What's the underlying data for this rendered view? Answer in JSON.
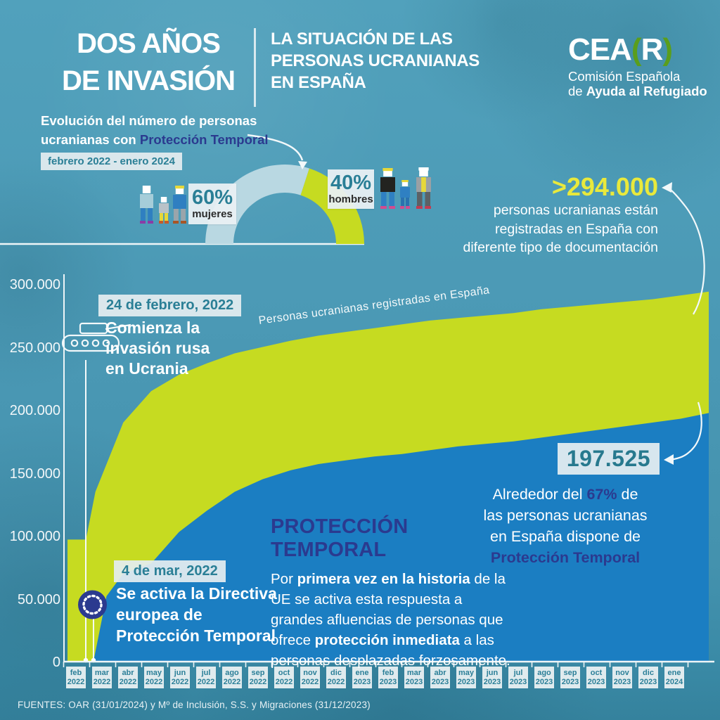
{
  "page": {
    "footer": "FUENTES: OAR (31/01/2024) y Mº de  Inclusión, S.S. y Migraciones (31/12/2023)"
  },
  "header": {
    "title_line1": "DOS AÑOS",
    "title_line2": "DE INVASIÓN",
    "subtitle_line1": "LA SITUACIÓN DE LAS",
    "subtitle_line2": "PERSONAS UCRANIANAS",
    "subtitle_line3": "EN ESPAÑA",
    "logo": {
      "part1": "CEA",
      "paren_open": "(",
      "part2": "R",
      "paren_close": ")",
      "org_line1": "Comisión Española",
      "org_line2_prefix": "de ",
      "org_line2_bold": "Ayuda al Refugiado",
      "accent_color": "#5a9e1c"
    }
  },
  "intro": {
    "line1": "Evolución del número de personas",
    "line2_prefix": "ucranianas con ",
    "line2_highlight": "Protección Temporal",
    "period": "febrero 2022 - enero 2024"
  },
  "gender_chart": {
    "type": "donut-half",
    "women_pct": "60%",
    "women_label": "mujeres",
    "women_color": "#b9d8e2",
    "men_pct": "40%",
    "men_label": "hombres",
    "men_color": "#c6db21"
  },
  "registered_callout": {
    "value": ">294.000",
    "line1": "personas ucranianas están",
    "line2": "registradas en España con",
    "line3": "diferente tipo de documentación",
    "value_color": "#e9e93c"
  },
  "pt_callout": {
    "value": "197.525",
    "line1_prefix": "Alrededor del ",
    "line1_bold": "67%",
    "line1_suffix": " de",
    "line2": "las personas ucranianas",
    "line3": "en España dispone de",
    "line4_bold": "Protección Temporal"
  },
  "protection_block": {
    "title": "PROTECCIÓN TEMPORAL",
    "p1": "Por ",
    "b1": "primera vez en la historia",
    "p2": " de la UE se activa esta respuesta  a grandes afluencias de personas que ofrece  ",
    "b2": "protección inmediata",
    "p3": " a las personas desplazadas forzosamente."
  },
  "annotations": {
    "invasion": {
      "date": "24 de febrero, 2022",
      "line1": "Comienza la",
      "line2": "invasión rusa",
      "line3": "en Ucrania"
    },
    "directive": {
      "date": "4 de mar, 2022",
      "line1": "Se activa la Directiva",
      "line2": "europea  de",
      "line3": "Protección Temporal"
    }
  },
  "chart_data": {
    "type": "area",
    "title": "Evolución del número de personas ucranianas con Protección Temporal",
    "ylim": [
      0,
      300000
    ],
    "grid": false,
    "legend_position": "on-chart",
    "y_ticks": [
      {
        "value": 300000,
        "label": "300.000"
      },
      {
        "value": 250000,
        "label": "250.000"
      },
      {
        "value": 200000,
        "label": "200.000"
      },
      {
        "value": 150000,
        "label": "150.000"
      },
      {
        "value": 100000,
        "label": "100.000"
      },
      {
        "value": 50000,
        "label": "50.000"
      },
      {
        "value": 0,
        "label": "0"
      }
    ],
    "months": [
      {
        "month": "feb",
        "year": "2022"
      },
      {
        "month": "mar",
        "year": "2022"
      },
      {
        "month": "abr",
        "year": "2022"
      },
      {
        "month": "may",
        "year": "2022"
      },
      {
        "month": "jun",
        "year": "2022"
      },
      {
        "month": "jul",
        "year": "2022"
      },
      {
        "month": "ago",
        "year": "2022"
      },
      {
        "month": "sep",
        "year": "2022"
      },
      {
        "month": "oct",
        "year": "2022"
      },
      {
        "month": "nov",
        "year": "2022"
      },
      {
        "month": "dic",
        "year": "2022"
      },
      {
        "month": "ene",
        "year": "2023"
      },
      {
        "month": "feb",
        "year": "2023"
      },
      {
        "month": "mar",
        "year": "2023"
      },
      {
        "month": "abr",
        "year": "2023"
      },
      {
        "month": "may",
        "year": "2023"
      },
      {
        "month": "jun",
        "year": "2023"
      },
      {
        "month": "jul",
        "year": "2023"
      },
      {
        "month": "ago",
        "year": "2023"
      },
      {
        "month": "sep",
        "year": "2023"
      },
      {
        "month": "oct",
        "year": "2023"
      },
      {
        "month": "nov",
        "year": "2023"
      },
      {
        "month": "dic",
        "year": "2023"
      },
      {
        "month": "ene",
        "year": "2024"
      }
    ],
    "series": [
      {
        "name": "Personas ucranianas registradas en España",
        "color": "#c6db21",
        "x": [
          0,
          0.66,
          1,
          2,
          3,
          4,
          5,
          6,
          7,
          8,
          9,
          10,
          11,
          12,
          13,
          14,
          15,
          16,
          17,
          18,
          19,
          20,
          21,
          22,
          23
        ],
        "values": [
          97000,
          97000,
          135000,
          190000,
          215000,
          228000,
          237000,
          245000,
          250000,
          255000,
          259000,
          262000,
          265000,
          268000,
          271000,
          273000,
          275000,
          277000,
          280000,
          282000,
          284000,
          286000,
          288000,
          291000,
          294000
        ],
        "end_label": ">294.000"
      },
      {
        "name": "Personas ucranianas con Protección Temporal",
        "color": "#1b7ec2",
        "x": [
          0.93,
          1.4,
          2,
          3,
          4,
          5,
          6,
          7,
          8,
          9,
          10,
          11,
          12,
          13,
          14,
          15,
          16,
          17,
          18,
          19,
          20,
          21,
          22,
          23
        ],
        "values": [
          0,
          52000,
          70000,
          78000,
          103000,
          120000,
          135000,
          145000,
          152000,
          157000,
          160000,
          163000,
          165000,
          168000,
          171000,
          173000,
          175000,
          178000,
          181000,
          184000,
          187000,
          190000,
          193000,
          197525
        ],
        "end_label": "197.525"
      }
    ],
    "event_markers": [
      {
        "label": "24 de febrero, 2022",
        "x": 0.66
      },
      {
        "label": "4 de mar, 2022",
        "x": 0.93
      }
    ]
  }
}
